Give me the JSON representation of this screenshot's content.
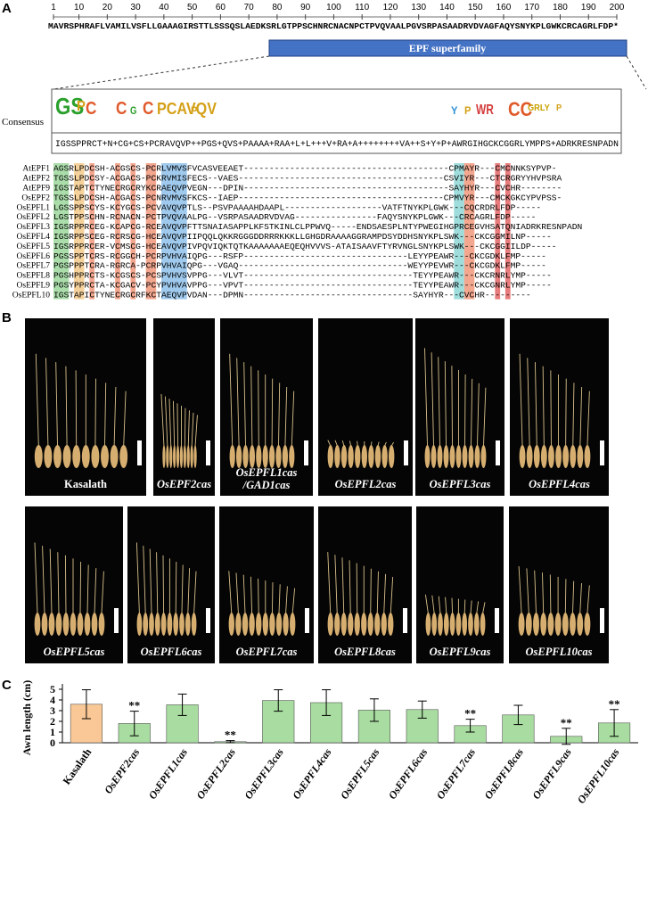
{
  "panel_labels": [
    "A",
    "B",
    "C"
  ],
  "panel_a": {
    "ruler": [
      1,
      10,
      20,
      30,
      40,
      50,
      60,
      70,
      80,
      90,
      100,
      110,
      120,
      130,
      140,
      150,
      160,
      170,
      180,
      190,
      200
    ],
    "sequence": "MAVRSPHRAFLVAMILVSFLLGAAAGIRSTTLSSSQSLAEDKSRLGTPPSCHNRCNACNPCTPVQVAALPGVSRPASAADRVDVAGFAQYSNYKPLGWKCRCAGRLFDP*",
    "domain_label": "EPF superfamily",
    "consensus_label": "Consensus",
    "logo": [
      "GS",
      "P",
      "C",
      "C",
      "G",
      "C",
      "PCAVQV",
      "P",
      "Y",
      "P",
      "WR",
      "CC",
      "GRLY",
      "P"
    ],
    "consensus_sequence": "IGSSPPRCT+N+CG+CS+PCRAVQVP++PGS+QVS+PAAAA+RAA+L+L+++V+RA+A++++++++VA++S+Y+P+AWRGIHGCKCGGRLYMPPS+ADRKRESNPADN",
    "alignment": [
      {
        "name": "AtEPF1",
        "seq": "AGSRLPDCSH-ACGSCS-PCRLVMVSFVCASVEEAET----------------------------------------CPMAYR---CMCNNKSYPVP-"
      },
      {
        "name": "AtEPF2",
        "seq": "TGSSLPDCSY-ACGACS-PCKRVMISFECS--VAES----------------------------------------CSVIYR---CTCRGRYYHVPSRA"
      },
      {
        "name": "AtEPF9",
        "seq": "IGSTAPTCTYNECRGCRYKCRAEQVPVEGN---DPIN----------------------------------------SAYHYR---CVCHR--------"
      },
      {
        "name": "OsEPF2",
        "seq": "TGSSLPDCSH-ACGACS-PCNRVMVSFKCS--IAEP----------------------------------------CPMVYR---CMCKGKCYPVPSS-"
      },
      {
        "name": "OsEPFL1",
        "seq": "LGSSPPSCYS-KCYGCS-PCVAVQVPTLS--PSVPAAAAHDAAPL-------------------VATFTNYKPLGWK---CQCRDRLFDP-----"
      },
      {
        "name": "OsEPFL2",
        "seq": "LGSTPPSCHN-RCNACN-PCTPVQVAALPG--VSRPASAADRVDVAG----------------FAQYSNYKPLGWK---CRCAGRLFDP-----"
      },
      {
        "name": "OsEPFL3",
        "seq": "IGSRPPRCEG-KCAPCG-RCEAVQVPFTTSNAIASAPPLKFSTKINLCLPPWVQ-----ENDSAESPLNTYPWEGIHGPRCEGVHSATQNIADRKRESNPADN"
      },
      {
        "name": "OsEPFL4",
        "seq": "IGSRPPSCEG-RCRSCG-HCEAVQVPIIPQQLQKKRGGGDDRRRKKKLLGHGDRAAAAGGRAMPDSYDDHSNYKPLSWK---CKCGGMILNP-----"
      },
      {
        "name": "OsEPFL5",
        "seq": "IGSRPPRCER-VCMSCG-HCEAVQVPIVPQVIQKTQTKAAAAAAAEQEQHVVVS-ATAISAAVFTYRVNGLSNYKPLSWK---CKCGGIILDP-----"
      },
      {
        "name": "OsEPFL6",
        "seq": "PGSSPPTCRS-RCGGCH-PCRPVHVAIQPG---RSFP--------------------------------LEYYPEAWR---CKCGDKLFMP-----"
      },
      {
        "name": "OsEPFL7",
        "seq": "PGSPPPTCRA-RGRCA-PCRPVHVAIQPG---VGAQ---------------------------------WEYYPEVWR---CKCGDKLFMP-----"
      },
      {
        "name": "OsEPFL8",
        "seq": "PGSHPPRCTS-KCGSCS-PCSPVHVSVPPG---VLVT---------------------------------TEYYPEAWR---CKCRNRLYMP-----"
      },
      {
        "name": "OsEPFL9",
        "seq": "PGSYPPRCTA-KCGACV-PCYPVHVAVPPG---VPVT---------------------------------TEYYPEAWR---CKCGNRLYMP-----"
      },
      {
        "name": "OsEPFL10",
        "seq": "IGSTAPICTYNECRGCRFKCTAEQVPVDAN---DPMN---------------------------------SAYHYR---CVCHR---------"
      }
    ]
  },
  "panel_b": {
    "photos": [
      {
        "label": "Kasalath"
      },
      {
        "label": "OsEPF2cas"
      },
      {
        "label": [
          "OsEPFL1cas",
          "/GAD1cas"
        ]
      },
      {
        "label": "OsEPFL2cas"
      },
      {
        "label": "OsEPFL3cas"
      },
      {
        "label": "OsEPFL4cas"
      },
      {
        "label": "OsEPFL5cas"
      },
      {
        "label": "OsEPFL6cas"
      },
      {
        "label": "OsEPFL7cas"
      },
      {
        "label": "OsEPFL8cas"
      },
      {
        "label": "OsEPFL9cas"
      },
      {
        "label": "OsEPFL10cas"
      }
    ]
  },
  "chart_data": {
    "type": "bar",
    "y_label": "Awn length (cm)",
    "categories": [
      "Kasalath",
      "OsEPF2cas",
      "OsEPFL1cas",
      "OsEPFL2cas",
      "OsEPFL3cas",
      "OsEPFL4cas",
      "OsEPFL5cas",
      "OsEPFL6cas",
      "OsEPFL7cas",
      "OsEPFL8cas",
      "OsEPFL9cas",
      "OsEPFL10cas"
    ],
    "values": [
      3.6,
      1.8,
      3.55,
      0.1,
      3.95,
      3.75,
      3.05,
      3.1,
      1.6,
      2.6,
      0.6,
      1.85
    ],
    "errors": [
      1.35,
      1.15,
      1.0,
      0.1,
      1.0,
      1.2,
      1.05,
      0.8,
      0.6,
      0.9,
      0.75,
      1.25
    ],
    "colors": [
      "#f9c896",
      "#a8dca0",
      "#a8dca0",
      "#a8dca0",
      "#a8dca0",
      "#a8dca0",
      "#a8dca0",
      "#a8dca0",
      "#a8dca0",
      "#a8dca0",
      "#a8dca0",
      "#a8dca0"
    ],
    "annotations": [
      {
        "index": 1,
        "text": "**"
      },
      {
        "index": 3,
        "text": "**"
      },
      {
        "index": 8,
        "text": "**"
      },
      {
        "index": 10,
        "text": "**"
      },
      {
        "index": 11,
        "text": "**"
      }
    ],
    "ylim": [
      0,
      5.5
    ],
    "yticks": [
      0,
      1,
      2,
      3,
      4,
      5
    ]
  }
}
